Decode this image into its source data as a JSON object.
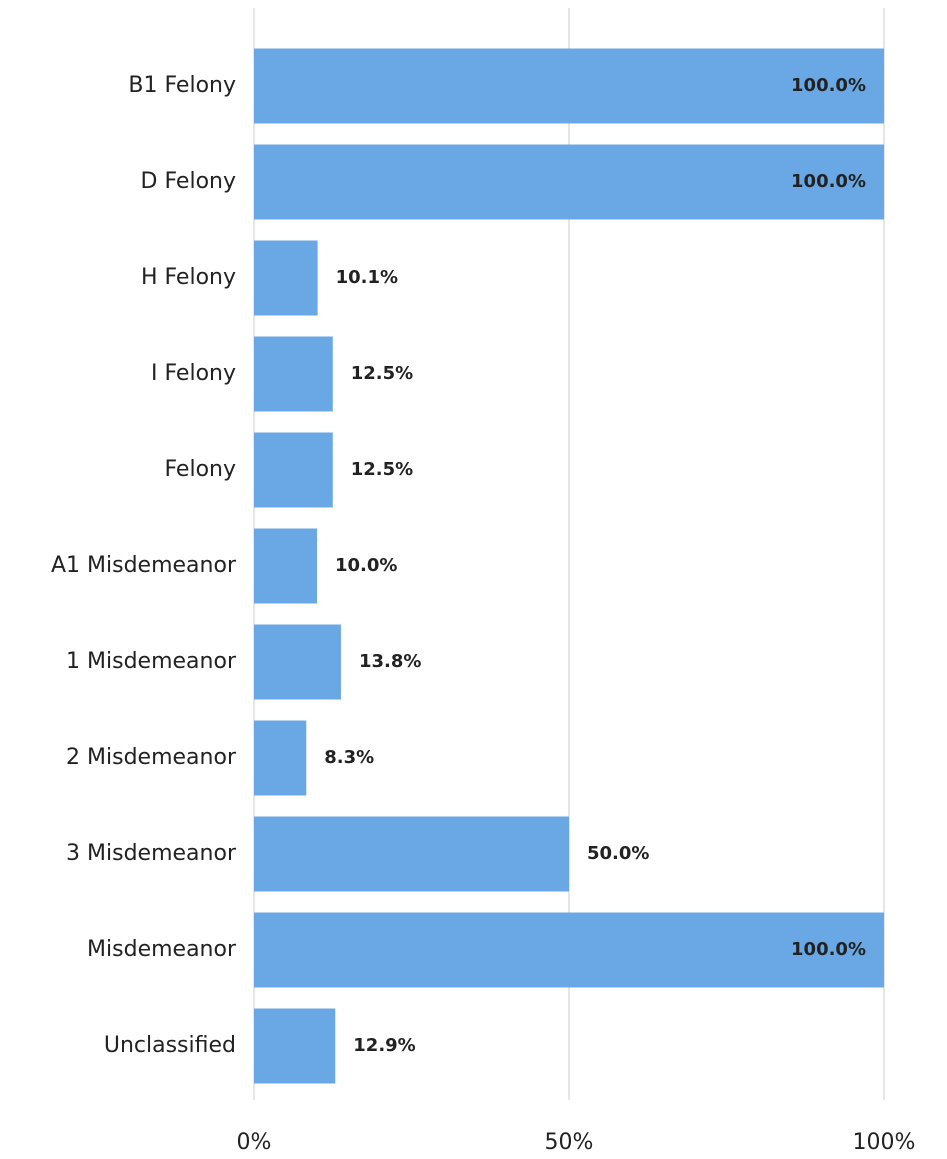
{
  "chart_data": {
    "type": "bar",
    "orientation": "horizontal",
    "categories": [
      "B1 Felony",
      "D Felony",
      "H Felony",
      "I Felony",
      "Felony",
      "A1 Misdemeanor",
      "1 Misdemeanor",
      "2 Misdemeanor",
      "3 Misdemeanor",
      "Misdemeanor",
      "Unclassified"
    ],
    "values": [
      100,
      100,
      10.1,
      12.5,
      12.5,
      10.0,
      13.8,
      8.3,
      50.0,
      100,
      12.9
    ],
    "value_labels": [
      "100.0%",
      "100.0%",
      "10.1%",
      "12.5%",
      "12.5%",
      "10.0%",
      "13.8%",
      "8.3%",
      "50.0%",
      "100.0%",
      "12.9%"
    ],
    "color": "#69a8e4",
    "xlim": [
      0,
      100
    ],
    "xticks": [
      {
        "value": 0,
        "label": "0%"
      },
      {
        "value": 50,
        "label": "50%"
      },
      {
        "value": 100,
        "label": "100%"
      }
    ],
    "grid": true
  }
}
